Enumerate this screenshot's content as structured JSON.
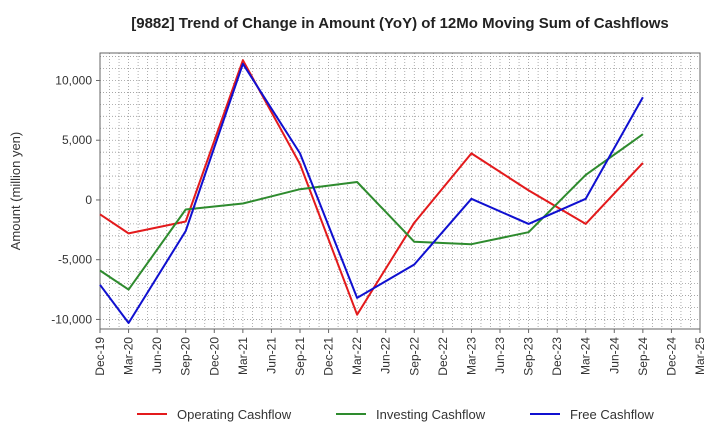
{
  "chart_data": {
    "type": "line",
    "title": "[9882]  Trend of Change in Amount (YoY) of 12Mo Moving Sum of Cashflows",
    "xlabel": "",
    "ylabel": "Amount (million yen)",
    "categories": [
      "Dec-19",
      "Mar-20",
      "Jun-20",
      "Sep-20",
      "Dec-20",
      "Mar-21",
      "Jun-21",
      "Sep-21",
      "Dec-21",
      "Mar-22",
      "Jun-22",
      "Sep-22",
      "Dec-22",
      "Mar-23",
      "Jun-23",
      "Sep-23",
      "Dec-23",
      "Mar-24",
      "Jun-24",
      "Sep-24",
      "Dec-24",
      "Mar-25"
    ],
    "ylim": [
      -10800,
      12300
    ],
    "yticks": [
      -10000,
      -5000,
      0,
      5000,
      10000
    ],
    "ytick_labels": [
      "-10,000",
      "-5,000",
      "0",
      "5,000",
      "10,000"
    ],
    "grid": true,
    "legend_position": "bottom",
    "series": [
      {
        "name": "Operating Cashflow",
        "color": "#e31a1c",
        "values": [
          -1200,
          -2800,
          null,
          -1800,
          null,
          11700,
          null,
          3000,
          null,
          -9600,
          null,
          -1900,
          null,
          3900,
          null,
          800,
          null,
          -2000,
          null,
          3100,
          null,
          null
        ]
      },
      {
        "name": "Investing Cashflow",
        "color": "#2e8b2e",
        "values": [
          -5900,
          -7500,
          null,
          -800,
          null,
          -300,
          null,
          900,
          null,
          1500,
          null,
          -3500,
          null,
          -3700,
          null,
          -2700,
          null,
          2100,
          null,
          5500,
          null,
          null
        ]
      },
      {
        "name": "Free Cashflow",
        "color": "#1010d0",
        "values": [
          -7100,
          -10300,
          null,
          -2600,
          null,
          11400,
          null,
          3900,
          null,
          -8200,
          null,
          -5400,
          null,
          100,
          null,
          -2000,
          null,
          100,
          null,
          8600,
          null,
          null
        ]
      }
    ]
  }
}
